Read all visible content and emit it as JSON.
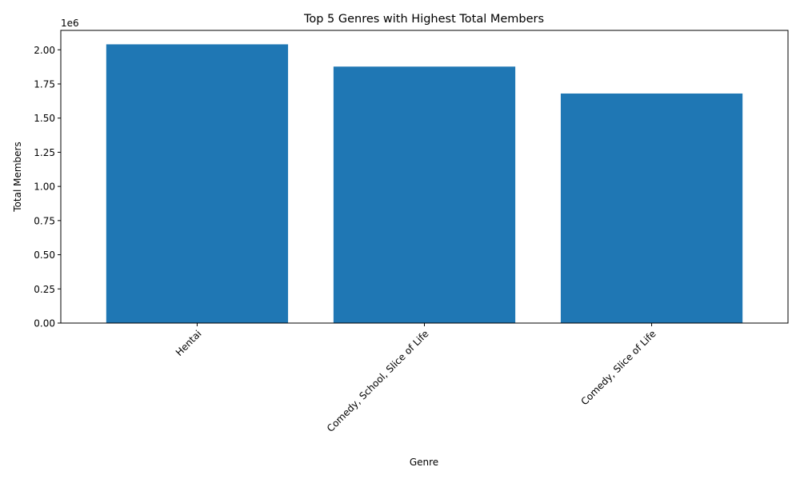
{
  "chart_data": {
    "type": "bar",
    "title": "Top 5 Genres with Highest Total Members",
    "xlabel": "Genre",
    "ylabel": "Total Members",
    "y_offset_text": "1e6",
    "categories": [
      "Hentai",
      "Comedy, School, Slice of Life",
      "Comedy, Slice of Life"
    ],
    "values": [
      2040000,
      1877000,
      1680000
    ],
    "ylim": [
      0,
      2142000
    ],
    "yticks": [
      0,
      250000,
      500000,
      750000,
      1000000,
      1250000,
      1500000,
      1750000,
      2000000
    ],
    "ytick_labels": [
      "0.00",
      "0.25",
      "0.50",
      "0.75",
      "1.00",
      "1.25",
      "1.50",
      "1.75",
      "2.00"
    ],
    "bar_color": "#1f77b4",
    "grid": false
  }
}
